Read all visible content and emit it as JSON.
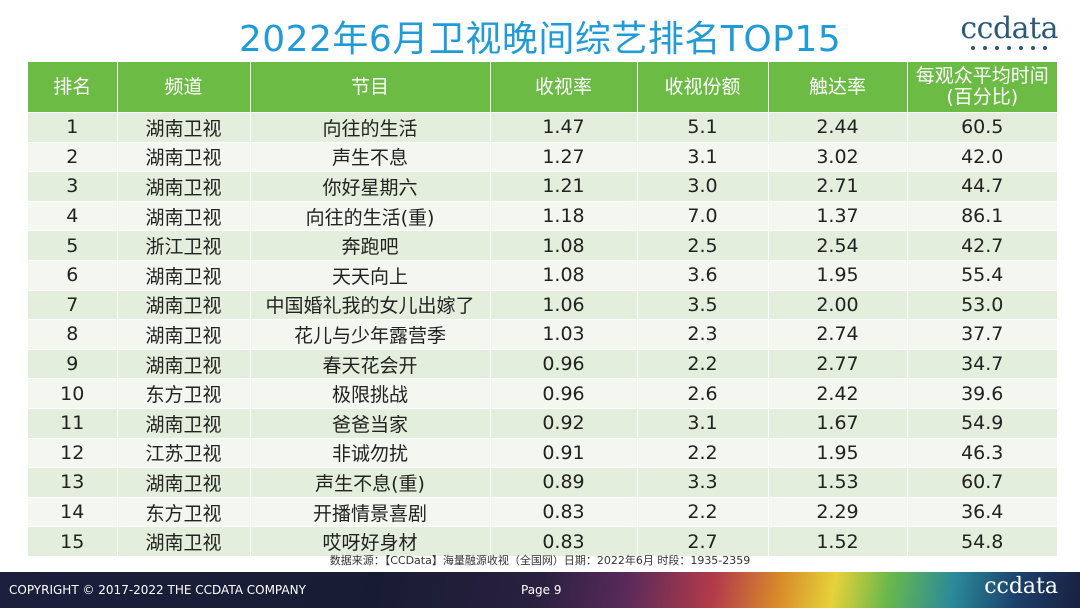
{
  "title": "2022年6月卫视晚间综艺排名TOP15",
  "logo": "ccdata",
  "table": {
    "headers": [
      "排名",
      "频道",
      "节目",
      "收视率",
      "收视份额",
      "触达率",
      "每观众平均时间\n(百分比)"
    ],
    "rows": [
      [
        "1",
        "湖南卫视",
        "向往的生活",
        "1.47",
        "5.1",
        "2.44",
        "60.5"
      ],
      [
        "2",
        "湖南卫视",
        "声生不息",
        "1.27",
        "3.1",
        "3.02",
        "42.0"
      ],
      [
        "3",
        "湖南卫视",
        "你好星期六",
        "1.21",
        "3.0",
        "2.71",
        "44.7"
      ],
      [
        "4",
        "湖南卫视",
        "向往的生活(重)",
        "1.18",
        "7.0",
        "1.37",
        "86.1"
      ],
      [
        "5",
        "浙江卫视",
        "奔跑吧",
        "1.08",
        "2.5",
        "2.54",
        "42.7"
      ],
      [
        "6",
        "湖南卫视",
        "天天向上",
        "1.08",
        "3.6",
        "1.95",
        "55.4"
      ],
      [
        "7",
        "湖南卫视",
        "中国婚礼我的女儿出嫁了",
        "1.06",
        "3.5",
        "2.00",
        "53.0"
      ],
      [
        "8",
        "湖南卫视",
        "花儿与少年露营季",
        "1.03",
        "2.3",
        "2.74",
        "37.7"
      ],
      [
        "9",
        "湖南卫视",
        "春天花会开",
        "0.96",
        "2.2",
        "2.77",
        "34.7"
      ],
      [
        "10",
        "东方卫视",
        "极限挑战",
        "0.96",
        "2.6",
        "2.42",
        "39.6"
      ],
      [
        "11",
        "湖南卫视",
        "爸爸当家",
        "0.92",
        "3.1",
        "1.67",
        "54.9"
      ],
      [
        "12",
        "江苏卫视",
        "非诚勿扰",
        "0.91",
        "2.2",
        "1.95",
        "46.3"
      ],
      [
        "13",
        "湖南卫视",
        "声生不息(重)",
        "0.89",
        "3.3",
        "1.53",
        "60.7"
      ],
      [
        "14",
        "东方卫视",
        "开播情景喜剧",
        "0.83",
        "2.2",
        "2.29",
        "36.4"
      ],
      [
        "15",
        "湖南卫视",
        "哎呀好身材",
        "0.83",
        "2.7",
        "1.52",
        "54.8"
      ]
    ]
  },
  "source": "数据来源：【CCData】海量融源收视（全国网）日期：2022年6月 时段：1935-2359",
  "footer": {
    "copyright": "COPYRIGHT © 2017-2022 THE CCDATA COMPANY",
    "page": "Page 9",
    "logo": "ccdata"
  },
  "colors": {
    "title": "#1f9bd7",
    "header_bg": "#6cbb45",
    "row_odd": "#e3eedc",
    "row_even": "#f3f7f0"
  }
}
